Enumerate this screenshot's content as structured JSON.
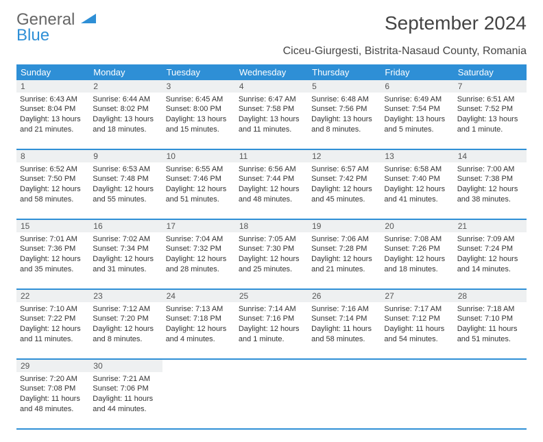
{
  "brand": {
    "word1": "General",
    "word2": "Blue"
  },
  "title": "September 2024",
  "location": "Ciceu-Giurgesti, Bistrita-Nasaud County, Romania",
  "header_bg": "#2e8fd6",
  "header_fg": "#ffffff",
  "daynum_bg": "#eef0f1",
  "border_color": "#2e8fd6",
  "logo_blue": "#2e8fd6",
  "weekdays": [
    "Sunday",
    "Monday",
    "Tuesday",
    "Wednesday",
    "Thursday",
    "Friday",
    "Saturday"
  ],
  "weeks": [
    [
      {
        "n": "1",
        "sunrise": "Sunrise: 6:43 AM",
        "sunset": "Sunset: 8:04 PM",
        "day1": "Daylight: 13 hours",
        "day2": "and 21 minutes."
      },
      {
        "n": "2",
        "sunrise": "Sunrise: 6:44 AM",
        "sunset": "Sunset: 8:02 PM",
        "day1": "Daylight: 13 hours",
        "day2": "and 18 minutes."
      },
      {
        "n": "3",
        "sunrise": "Sunrise: 6:45 AM",
        "sunset": "Sunset: 8:00 PM",
        "day1": "Daylight: 13 hours",
        "day2": "and 15 minutes."
      },
      {
        "n": "4",
        "sunrise": "Sunrise: 6:47 AM",
        "sunset": "Sunset: 7:58 PM",
        "day1": "Daylight: 13 hours",
        "day2": "and 11 minutes."
      },
      {
        "n": "5",
        "sunrise": "Sunrise: 6:48 AM",
        "sunset": "Sunset: 7:56 PM",
        "day1": "Daylight: 13 hours",
        "day2": "and 8 minutes."
      },
      {
        "n": "6",
        "sunrise": "Sunrise: 6:49 AM",
        "sunset": "Sunset: 7:54 PM",
        "day1": "Daylight: 13 hours",
        "day2": "and 5 minutes."
      },
      {
        "n": "7",
        "sunrise": "Sunrise: 6:51 AM",
        "sunset": "Sunset: 7:52 PM",
        "day1": "Daylight: 13 hours",
        "day2": "and 1 minute."
      }
    ],
    [
      {
        "n": "8",
        "sunrise": "Sunrise: 6:52 AM",
        "sunset": "Sunset: 7:50 PM",
        "day1": "Daylight: 12 hours",
        "day2": "and 58 minutes."
      },
      {
        "n": "9",
        "sunrise": "Sunrise: 6:53 AM",
        "sunset": "Sunset: 7:48 PM",
        "day1": "Daylight: 12 hours",
        "day2": "and 55 minutes."
      },
      {
        "n": "10",
        "sunrise": "Sunrise: 6:55 AM",
        "sunset": "Sunset: 7:46 PM",
        "day1": "Daylight: 12 hours",
        "day2": "and 51 minutes."
      },
      {
        "n": "11",
        "sunrise": "Sunrise: 6:56 AM",
        "sunset": "Sunset: 7:44 PM",
        "day1": "Daylight: 12 hours",
        "day2": "and 48 minutes."
      },
      {
        "n": "12",
        "sunrise": "Sunrise: 6:57 AM",
        "sunset": "Sunset: 7:42 PM",
        "day1": "Daylight: 12 hours",
        "day2": "and 45 minutes."
      },
      {
        "n": "13",
        "sunrise": "Sunrise: 6:58 AM",
        "sunset": "Sunset: 7:40 PM",
        "day1": "Daylight: 12 hours",
        "day2": "and 41 minutes."
      },
      {
        "n": "14",
        "sunrise": "Sunrise: 7:00 AM",
        "sunset": "Sunset: 7:38 PM",
        "day1": "Daylight: 12 hours",
        "day2": "and 38 minutes."
      }
    ],
    [
      {
        "n": "15",
        "sunrise": "Sunrise: 7:01 AM",
        "sunset": "Sunset: 7:36 PM",
        "day1": "Daylight: 12 hours",
        "day2": "and 35 minutes."
      },
      {
        "n": "16",
        "sunrise": "Sunrise: 7:02 AM",
        "sunset": "Sunset: 7:34 PM",
        "day1": "Daylight: 12 hours",
        "day2": "and 31 minutes."
      },
      {
        "n": "17",
        "sunrise": "Sunrise: 7:04 AM",
        "sunset": "Sunset: 7:32 PM",
        "day1": "Daylight: 12 hours",
        "day2": "and 28 minutes."
      },
      {
        "n": "18",
        "sunrise": "Sunrise: 7:05 AM",
        "sunset": "Sunset: 7:30 PM",
        "day1": "Daylight: 12 hours",
        "day2": "and 25 minutes."
      },
      {
        "n": "19",
        "sunrise": "Sunrise: 7:06 AM",
        "sunset": "Sunset: 7:28 PM",
        "day1": "Daylight: 12 hours",
        "day2": "and 21 minutes."
      },
      {
        "n": "20",
        "sunrise": "Sunrise: 7:08 AM",
        "sunset": "Sunset: 7:26 PM",
        "day1": "Daylight: 12 hours",
        "day2": "and 18 minutes."
      },
      {
        "n": "21",
        "sunrise": "Sunrise: 7:09 AM",
        "sunset": "Sunset: 7:24 PM",
        "day1": "Daylight: 12 hours",
        "day2": "and 14 minutes."
      }
    ],
    [
      {
        "n": "22",
        "sunrise": "Sunrise: 7:10 AM",
        "sunset": "Sunset: 7:22 PM",
        "day1": "Daylight: 12 hours",
        "day2": "and 11 minutes."
      },
      {
        "n": "23",
        "sunrise": "Sunrise: 7:12 AM",
        "sunset": "Sunset: 7:20 PM",
        "day1": "Daylight: 12 hours",
        "day2": "and 8 minutes."
      },
      {
        "n": "24",
        "sunrise": "Sunrise: 7:13 AM",
        "sunset": "Sunset: 7:18 PM",
        "day1": "Daylight: 12 hours",
        "day2": "and 4 minutes."
      },
      {
        "n": "25",
        "sunrise": "Sunrise: 7:14 AM",
        "sunset": "Sunset: 7:16 PM",
        "day1": "Daylight: 12 hours",
        "day2": "and 1 minute."
      },
      {
        "n": "26",
        "sunrise": "Sunrise: 7:16 AM",
        "sunset": "Sunset: 7:14 PM",
        "day1": "Daylight: 11 hours",
        "day2": "and 58 minutes."
      },
      {
        "n": "27",
        "sunrise": "Sunrise: 7:17 AM",
        "sunset": "Sunset: 7:12 PM",
        "day1": "Daylight: 11 hours",
        "day2": "and 54 minutes."
      },
      {
        "n": "28",
        "sunrise": "Sunrise: 7:18 AM",
        "sunset": "Sunset: 7:10 PM",
        "day1": "Daylight: 11 hours",
        "day2": "and 51 minutes."
      }
    ],
    [
      {
        "n": "29",
        "sunrise": "Sunrise: 7:20 AM",
        "sunset": "Sunset: 7:08 PM",
        "day1": "Daylight: 11 hours",
        "day2": "and 48 minutes."
      },
      {
        "n": "30",
        "sunrise": "Sunrise: 7:21 AM",
        "sunset": "Sunset: 7:06 PM",
        "day1": "Daylight: 11 hours",
        "day2": "and 44 minutes."
      },
      null,
      null,
      null,
      null,
      null
    ]
  ]
}
